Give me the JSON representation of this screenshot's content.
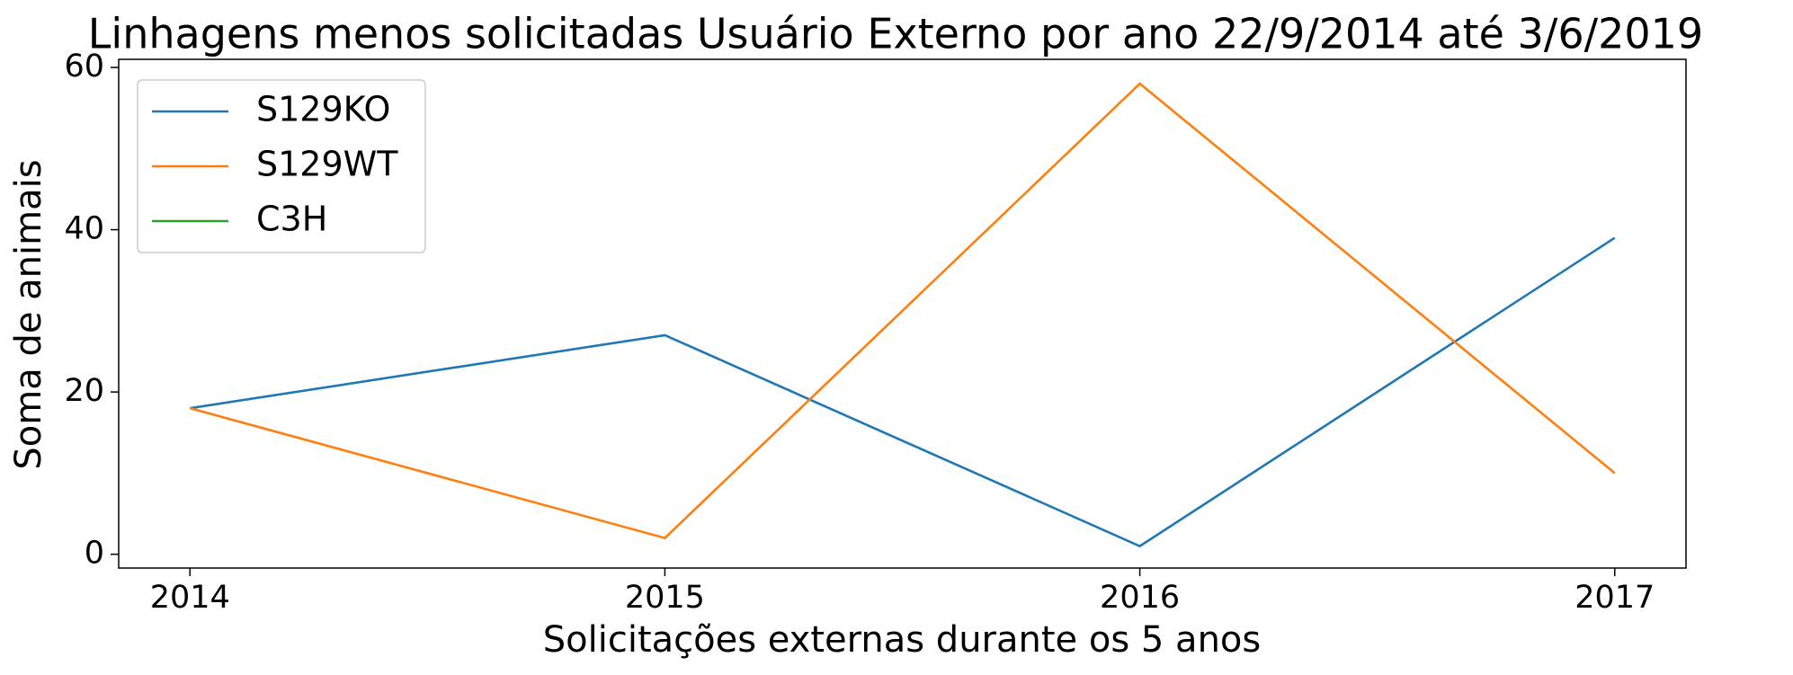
{
  "chart_data": {
    "type": "line",
    "title": "Linhagens menos solicitadas Usuário Externo por ano 22/9/2014 até 3/6/2019",
    "xlabel": "Solicitações externas durante os 5 anos",
    "ylabel": "Soma de animais",
    "x": [
      2014,
      2015,
      2016,
      2017
    ],
    "series": [
      {
        "name": "S129KO",
        "color": "#1f77b4",
        "values": [
          18,
          27,
          1,
          39
        ]
      },
      {
        "name": "S129WT",
        "color": "#ff7f0e",
        "values": [
          18,
          2,
          58,
          10
        ]
      },
      {
        "name": "C3H",
        "color": "#2ca02c",
        "values": [
          null,
          null,
          null,
          null
        ]
      }
    ],
    "xlim": [
      2013.85,
      2017.15
    ],
    "xticks": [
      2014,
      2015,
      2016,
      2017
    ],
    "ylim": [
      -1.7,
      61
    ],
    "yticks": [
      0,
      20,
      40,
      60
    ],
    "legend": "upper left",
    "grid": false
  }
}
